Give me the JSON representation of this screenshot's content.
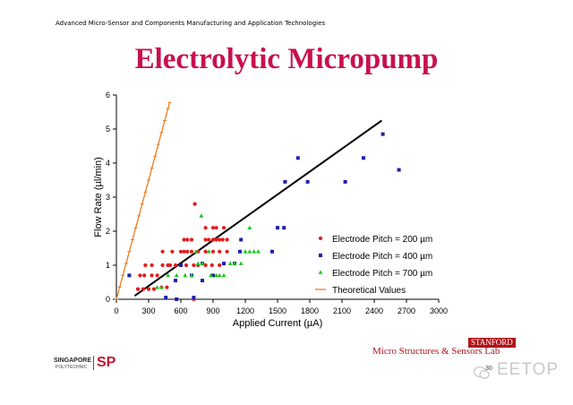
{
  "header": {
    "subtitle": "Advanced Micro-Sensor and Components Manufacturing and Application Technologies"
  },
  "slide": {
    "title": "Electrolytic Micropump",
    "page_number": "30"
  },
  "footer": {
    "brand_badge": "STANFORD",
    "lab_name": "Micro Structures & Sensors Lab",
    "logo_line1": "SINGAPORE",
    "logo_line2": "POLYTECHNIC",
    "logo_mark": "SP",
    "watermark": "EETOP"
  },
  "chart_data": {
    "type": "scatter",
    "xlabel": "Applied Current (µA)",
    "ylabel": "Flow Rate (µl/min)",
    "xlim": [
      0,
      3000
    ],
    "ylim": [
      0,
      6
    ],
    "xticks": [
      0,
      300,
      600,
      900,
      1200,
      1500,
      1800,
      2100,
      2400,
      2700,
      3000
    ],
    "yticks": [
      0,
      1,
      2,
      3,
      4,
      5,
      6
    ],
    "grid": false,
    "legend_position": "bottom-right",
    "series": [
      {
        "name": "Electrode Pitch = 200 µm",
        "color": "#e31a1c",
        "marker": "circle",
        "points": [
          [
            200,
            0.3
          ],
          [
            250,
            0.3
          ],
          [
            300,
            0.3
          ],
          [
            350,
            0.3
          ],
          [
            720,
            0.0
          ],
          [
            220,
            0.7
          ],
          [
            260,
            0.7
          ],
          [
            330,
            0.7
          ],
          [
            380,
            0.7
          ],
          [
            270,
            1.0
          ],
          [
            330,
            1.0
          ],
          [
            430,
            1.0
          ],
          [
            480,
            1.0
          ],
          [
            500,
            1.0
          ],
          [
            550,
            1.0
          ],
          [
            650,
            1.0
          ],
          [
            720,
            1.0
          ],
          [
            760,
            1.0
          ],
          [
            830,
            1.0
          ],
          [
            890,
            1.0
          ],
          [
            960,
            1.0
          ],
          [
            430,
            1.4
          ],
          [
            520,
            1.4
          ],
          [
            600,
            1.4
          ],
          [
            630,
            1.4
          ],
          [
            660,
            1.4
          ],
          [
            700,
            1.4
          ],
          [
            760,
            1.4
          ],
          [
            830,
            1.4
          ],
          [
            900,
            1.4
          ],
          [
            960,
            1.4
          ],
          [
            1030,
            1.4
          ],
          [
            630,
            1.75
          ],
          [
            660,
            1.75
          ],
          [
            700,
            1.75
          ],
          [
            830,
            1.75
          ],
          [
            860,
            1.75
          ],
          [
            900,
            1.75
          ],
          [
            930,
            1.75
          ],
          [
            960,
            1.75
          ],
          [
            990,
            1.75
          ],
          [
            1030,
            1.75
          ],
          [
            830,
            2.1
          ],
          [
            900,
            2.1
          ],
          [
            930,
            2.1
          ],
          [
            1000,
            2.1
          ],
          [
            730,
            2.8
          ],
          [
            420,
            0.35
          ],
          [
            470,
            0.35
          ]
        ]
      },
      {
        "name": "Electrode Pitch = 400 µm",
        "color": "#1f1fa8",
        "marker": "square",
        "points": [
          [
            120,
            0.7
          ],
          [
            460,
            0.05
          ],
          [
            560,
            0.0
          ],
          [
            720,
            0.05
          ],
          [
            550,
            0.55
          ],
          [
            700,
            0.7
          ],
          [
            800,
            0.55
          ],
          [
            900,
            0.7
          ],
          [
            600,
            1.0
          ],
          [
            800,
            1.05
          ],
          [
            1000,
            1.05
          ],
          [
            1100,
            1.05
          ],
          [
            1150,
            1.4
          ],
          [
            1450,
            1.4
          ],
          [
            1160,
            1.75
          ],
          [
            1500,
            2.1
          ],
          [
            1560,
            2.1
          ],
          [
            1570,
            3.45
          ],
          [
            1690,
            4.15
          ],
          [
            1780,
            3.45
          ],
          [
            2130,
            3.45
          ],
          [
            2300,
            4.15
          ],
          [
            2480,
            4.85
          ],
          [
            2630,
            3.8
          ]
        ]
      },
      {
        "name": "Electrode Pitch = 700 µm",
        "color": "#1ec31e",
        "marker": "triangle",
        "points": [
          [
            380,
            0.35
          ],
          [
            420,
            0.35
          ],
          [
            480,
            0.7
          ],
          [
            560,
            0.7
          ],
          [
            640,
            0.7
          ],
          [
            700,
            0.7
          ],
          [
            760,
            1.05
          ],
          [
            800,
            1.05
          ],
          [
            880,
            0.7
          ],
          [
            930,
            0.7
          ],
          [
            960,
            0.7
          ],
          [
            1000,
            0.7
          ],
          [
            1060,
            1.05
          ],
          [
            1100,
            1.05
          ],
          [
            1160,
            1.05
          ],
          [
            1200,
            1.4
          ],
          [
            1240,
            1.4
          ],
          [
            1280,
            1.4
          ],
          [
            1320,
            1.4
          ],
          [
            1240,
            2.1
          ],
          [
            790,
            2.45
          ],
          [
            860,
            1.4
          ],
          [
            740,
            1.4
          ]
        ]
      },
      {
        "name": "Theoretical Values",
        "color": "#ee7d21",
        "marker": "dash",
        "line": true,
        "points": [
          [
            0,
            0.0
          ],
          [
            30,
            0.35
          ],
          [
            60,
            0.7
          ],
          [
            90,
            1.05
          ],
          [
            120,
            1.4
          ],
          [
            150,
            1.75
          ],
          [
            180,
            2.1
          ],
          [
            210,
            2.45
          ],
          [
            240,
            2.8
          ],
          [
            270,
            3.15
          ],
          [
            300,
            3.5
          ],
          [
            330,
            3.85
          ],
          [
            360,
            4.2
          ],
          [
            390,
            4.55
          ],
          [
            420,
            4.9
          ],
          [
            450,
            5.25
          ],
          [
            480,
            5.6
          ],
          [
            495,
            5.78
          ]
        ]
      }
    ],
    "trend_line": {
      "color": "#000000",
      "points": [
        [
          170,
          0.1
        ],
        [
          2470,
          5.25
        ]
      ]
    }
  }
}
